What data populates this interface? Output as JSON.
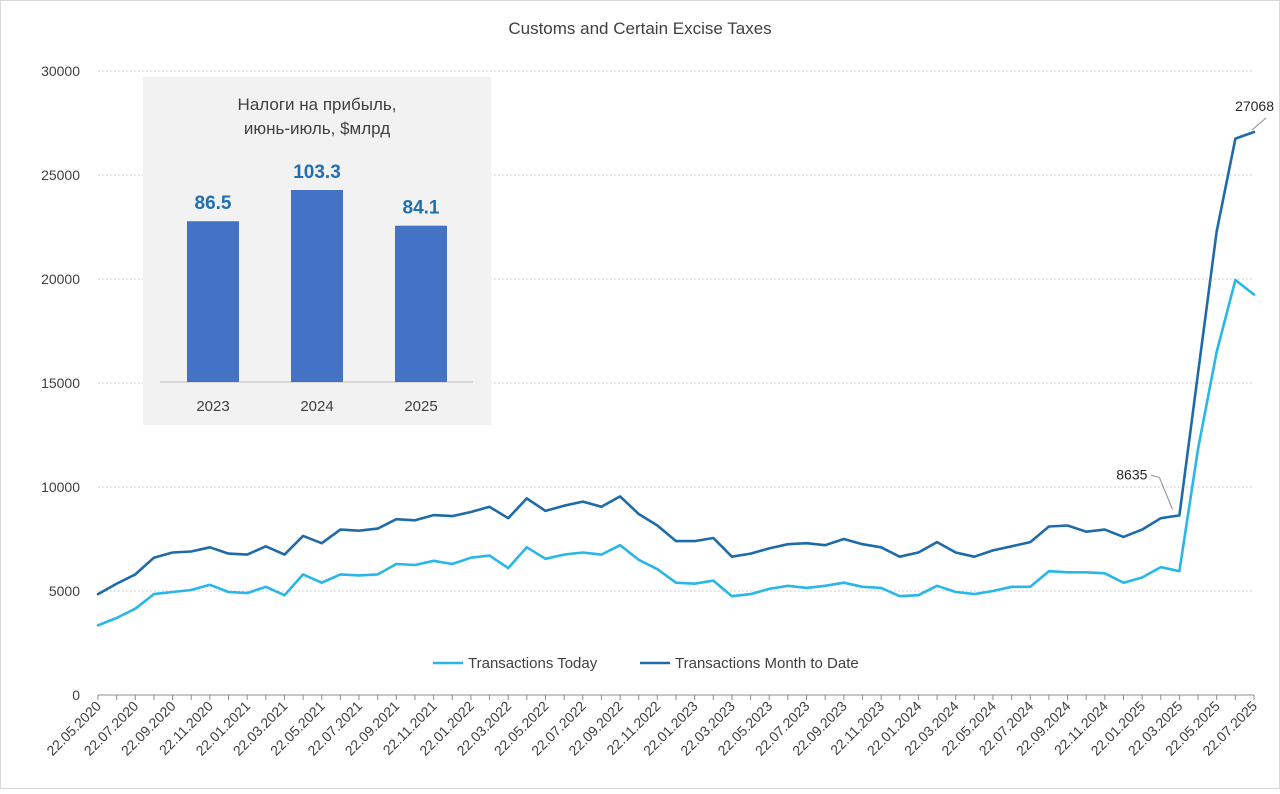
{
  "chart_data": [
    {
      "type": "line",
      "title": "Customs and Certain Excise Taxes",
      "xlabel": "",
      "ylabel": "",
      "ylim": [
        0,
        30000
      ],
      "yticks": [
        0,
        5000,
        10000,
        15000,
        20000,
        25000,
        30000
      ],
      "grid": true,
      "legend_position": "bottom",
      "x_tick_labels": [
        "22.05.2020",
        "22.07.2020",
        "22.09.2020",
        "22.11.2020",
        "22.01.2021",
        "22.03.2021",
        "22.05.2021",
        "22.07.2021",
        "22.09.2021",
        "22.11.2021",
        "22.01.2022",
        "22.03.2022",
        "22.05.2022",
        "22.07.2022",
        "22.09.2022",
        "22.11.2022",
        "22.01.2023",
        "22.03.2023",
        "22.05.2023",
        "22.07.2023",
        "22.09.2023",
        "22.11.2023",
        "22.01.2024",
        "22.03.2024",
        "22.05.2024",
        "22.07.2024",
        "22.09.2024",
        "22.11.2024",
        "22.01.2025",
        "22.03.2025",
        "22.05.2025",
        "22.07.2025"
      ],
      "series": [
        {
          "name": "Transactions Today",
          "color": "#29b6e8",
          "values": [
            3350,
            3700,
            4150,
            4850,
            4950,
            5050,
            5300,
            4950,
            4900,
            5200,
            4800,
            5800,
            5400,
            5800,
            5750,
            5800,
            6300,
            6250,
            6450,
            6300,
            6600,
            6700,
            6100,
            7100,
            6550,
            6750,
            6850,
            6750,
            7200,
            6500,
            6050,
            5400,
            5350,
            5500,
            4750,
            4850,
            5100,
            5250,
            5150,
            5250,
            5400,
            5200,
            5150,
            4750,
            4800,
            5250,
            4950,
            4850,
            5000,
            5200,
            5200,
            5950,
            5900,
            5900,
            5850,
            5400,
            5650,
            6150,
            5950,
            11850,
            16500,
            19950,
            19250
          ]
        },
        {
          "name": "Transactions Month to Date",
          "color": "#1f6aa9",
          "values": [
            4850,
            5350,
            5800,
            6600,
            6850,
            6900,
            7100,
            6800,
            6750,
            7150,
            6750,
            7650,
            7300,
            7950,
            7900,
            8000,
            8450,
            8400,
            8650,
            8600,
            8800,
            9050,
            8500,
            9450,
            8850,
            9100,
            9300,
            9050,
            9550,
            8700,
            8150,
            7400,
            7400,
            7550,
            6650,
            6800,
            7050,
            7250,
            7300,
            7200,
            7500,
            7250,
            7100,
            6650,
            6850,
            7350,
            6850,
            6650,
            6950,
            7150,
            7350,
            8100,
            8150,
            7850,
            7950,
            7600,
            7950,
            8500,
            8635,
            15500,
            22300,
            26750,
            27068
          ]
        }
      ],
      "annotations": [
        {
          "label": "8635",
          "series": "Transactions Month to Date",
          "value": 8635
        },
        {
          "label": "27068",
          "series": "Transactions Month to Date",
          "value": 27068
        }
      ]
    },
    {
      "type": "bar",
      "title": "Налоги на прибыль, июнь-июль, $млрд",
      "title_lines": [
        "Налоги на прибыль,",
        "июнь-июль, $млрд"
      ],
      "categories": [
        "2023",
        "2024",
        "2025"
      ],
      "values": [
        86.5,
        103.3,
        84.1
      ],
      "value_labels": [
        "86.5",
        "103.3",
        "84.1"
      ],
      "bar_color": "#4472c4",
      "label_color": "#1f6fb2",
      "ylim": [
        0,
        120
      ]
    }
  ]
}
